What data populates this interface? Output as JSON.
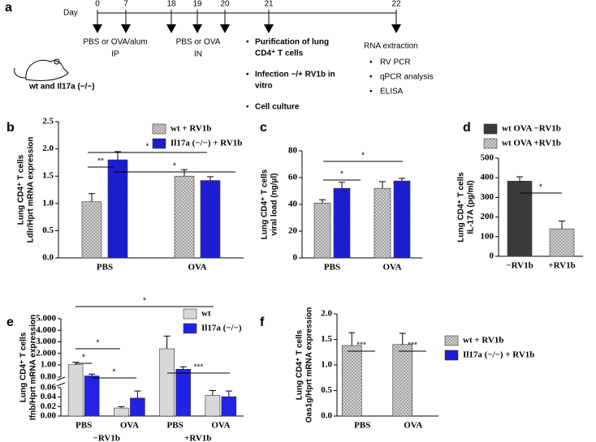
{
  "timeline": {
    "label": "a",
    "day_label": "Day",
    "days": [
      0,
      7,
      18,
      19,
      20,
      21,
      22
    ],
    "steps": [
      {
        "text": "PBS or OVA/alum",
        "route": "IP"
      },
      {
        "text": "PBS or OVA",
        "route": "IN"
      }
    ],
    "bullets": [
      [
        "Purification of lung",
        "CD4⁺ T cells"
      ],
      [
        "Infection −/+ RV1b in",
        "vitro"
      ],
      [
        "Cell culture"
      ]
    ],
    "rna_title": "RNA extraction",
    "rna_items": [
      "RV PCR",
      "qPCR analysis",
      "ELISA"
    ],
    "mouse_label": "wt and Il17a (−/−)"
  },
  "chart_data": [
    {
      "type": "bar",
      "label": "b",
      "ylabel": [
        "Lung CD4⁺ T cells",
        "Ldlr/Hprt mRNA expression"
      ],
      "categories": [
        "PBS",
        "OVA"
      ],
      "series": [
        {
          "name": "wt + RV1b",
          "color": "#c8c8c8",
          "hatched": true,
          "values": [
            1.03,
            1.5
          ],
          "errors": [
            0.15,
            0.12
          ]
        },
        {
          "name": "Il17a (−/−) + RV1b",
          "color": "#2222e6",
          "hatched": true,
          "values": [
            1.8,
            1.42
          ],
          "errors": [
            0.15,
            0.07
          ]
        }
      ],
      "ylim": [
        0,
        2.5
      ],
      "yticks": [
        {
          "value": 0,
          "label": "0.0"
        },
        {
          "value": 0.5,
          "label": "0.5"
        },
        {
          "value": 1,
          "label": "1.0"
        },
        {
          "value": 1.5,
          "label": "1.5"
        },
        {
          "value": 2,
          "label": "2.0"
        },
        {
          "value": 2.5,
          "label": "2.5"
        }
      ],
      "annotations": [
        "**",
        "*",
        "*"
      ]
    },
    {
      "type": "bar",
      "label": "c",
      "ylabel": [
        "Lung CD4⁺ T cells",
        "viral load (ng/µl)"
      ],
      "categories": [
        "PBS",
        "OVA"
      ],
      "series": [
        {
          "color": "#c8c8c8",
          "hatched": true,
          "values": [
            41,
            52
          ],
          "errors": [
            2.5,
            5
          ]
        },
        {
          "color": "#2222e6",
          "hatched": true,
          "values": [
            52,
            57.5
          ],
          "errors": [
            4.5,
            2
          ]
        }
      ],
      "ylim": [
        0,
        80
      ],
      "yticks": [
        0,
        20,
        40,
        60,
        80
      ],
      "annotations": [
        "*",
        "*"
      ]
    },
    {
      "type": "bar",
      "label": "d",
      "ylabel": [
        "Lung CD4⁺ T cells",
        "IL-17A (pg/ml)"
      ],
      "categories": [
        "−RV1b",
        "+RV1b"
      ],
      "series": [
        {
          "name": "wt OVA −RV1b",
          "color": "#3a3a3a",
          "hatched": false,
          "values": [
            383,
            null
          ],
          "errors": [
            22,
            null
          ]
        },
        {
          "name": "wt OVA +RV1b",
          "color": "#c8c8c8",
          "hatched": true,
          "values": [
            null,
            140
          ],
          "errors": [
            null,
            40
          ]
        }
      ],
      "ylim": [
        0,
        500
      ],
      "yticks": [
        0,
        100,
        200,
        300,
        400,
        500
      ],
      "annotations": [
        "*"
      ]
    },
    {
      "type": "bar",
      "label": "e",
      "ylabel": [
        "Lung CD4⁺ T cells",
        "Ifnb/Hprt mRNA expression"
      ],
      "categories": [
        "PBS",
        "OVA",
        "PBS",
        "OVA"
      ],
      "group_labels": [
        "−RV1b",
        "+RV1b"
      ],
      "series": [
        {
          "name": "wt",
          "color": "#d8d8d8",
          "hatched": false,
          "values": [
            1.03,
            0.017,
            2.4,
            0.044
          ],
          "errors": [
            0.2,
            0.003,
            1.1,
            0.01
          ]
        },
        {
          "name": "Il17a (−/−)",
          "color": "#2222e6",
          "hatched": false,
          "values": [
            0.82,
            0.038,
            0.93,
            0.041
          ],
          "errors": [
            0.03,
            0.015,
            0.04,
            0.012
          ]
        }
      ],
      "ysegments": [
        {
          "ylim": [
            0,
            0.06
          ],
          "yticks": [
            {
              "value": 0,
              "label": "0.00"
            },
            {
              "value": 0.02,
              "label": "0.02"
            },
            {
              "value": 0.04,
              "label": "0.04"
            },
            {
              "value": 0.06,
              "label": "0.06"
            }
          ]
        },
        {
          "ylim": [
            0.8,
            1
          ],
          "yticks": [
            {
              "value": 0.8,
              "label": "0.80"
            }
          ]
        },
        {
          "ylim": [
            1,
            5
          ],
          "yticks": [
            {
              "value": 1,
              "label": "1.00"
            },
            {
              "value": 2,
              "label": "2.000"
            },
            {
              "value": 3,
              "label": "3.000"
            },
            {
              "value": 4,
              "label": "4.000"
            },
            {
              "value": 5,
              "label": "5.000"
            }
          ]
        }
      ],
      "annotations": [
        "*",
        "*",
        "*",
        "*",
        "***"
      ]
    },
    {
      "type": "bar",
      "label": "f",
      "ylabel": [
        "Lung CD4⁺ T cells",
        "Oas1g/Hprt mRNA expression"
      ],
      "categories": [
        "PBS",
        "OVA"
      ],
      "series": [
        {
          "name": "wt + RV1b",
          "color": "#c8c8c8",
          "hatched": true,
          "values": [
            1.38,
            1.4
          ],
          "errors": [
            0.25,
            0.22
          ]
        },
        {
          "name": "Il17a (−/−) + RV1b",
          "color": "#2222e6",
          "hatched": true,
          "values": [
            0,
            0
          ],
          "errors": [
            0,
            0
          ]
        }
      ],
      "ylim": [
        0,
        2
      ],
      "yticks": [
        {
          "value": 0,
          "label": "0.0"
        },
        {
          "value": 0.5,
          "label": "0.5"
        },
        {
          "value": 1,
          "label": "1.0"
        },
        {
          "value": 1.5,
          "label": "1.5"
        },
        {
          "value": 2,
          "label": "2.0"
        }
      ],
      "annotations": [
        "***",
        "***"
      ]
    }
  ]
}
